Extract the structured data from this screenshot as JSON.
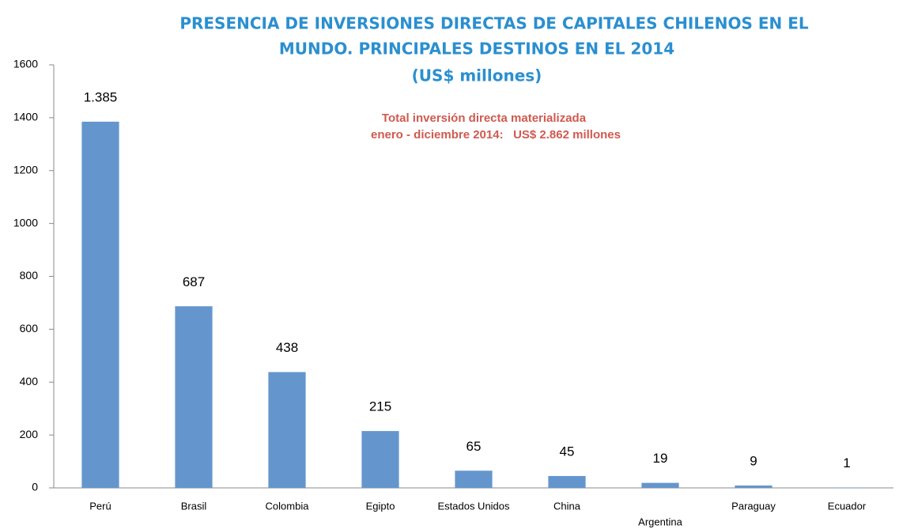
{
  "chart_data": {
    "type": "bar",
    "title": [
      "PRESENCIA DE INVERSIONES DIRECTAS DE CAPITALES CHILENOS EN EL",
      "MUNDO. PRINCIPALES DESTINOS EN EL 2014"
    ],
    "subtitle": "(US$ millones)",
    "annotations": [
      "Total inversión directa materializada",
      "enero - diciembre 2014:   US$ 2.862 millones"
    ],
    "categories": [
      "Perú",
      "Brasil",
      "Colombia",
      "Egipto",
      "Estados Unidos",
      "China",
      "Argentina",
      "Paraguay",
      "Ecuador"
    ],
    "values": [
      1385,
      687,
      438,
      215,
      65,
      45,
      19,
      9,
      1
    ],
    "value_labels": [
      "1.385",
      "687",
      "438",
      "215",
      "65",
      "45",
      "19",
      "9",
      "1"
    ],
    "color": "#6496cd",
    "ylim": [
      0,
      1600
    ],
    "yticks": [
      0,
      200,
      400,
      600,
      800,
      1000,
      1200,
      1400,
      1600
    ],
    "grid": false
  }
}
